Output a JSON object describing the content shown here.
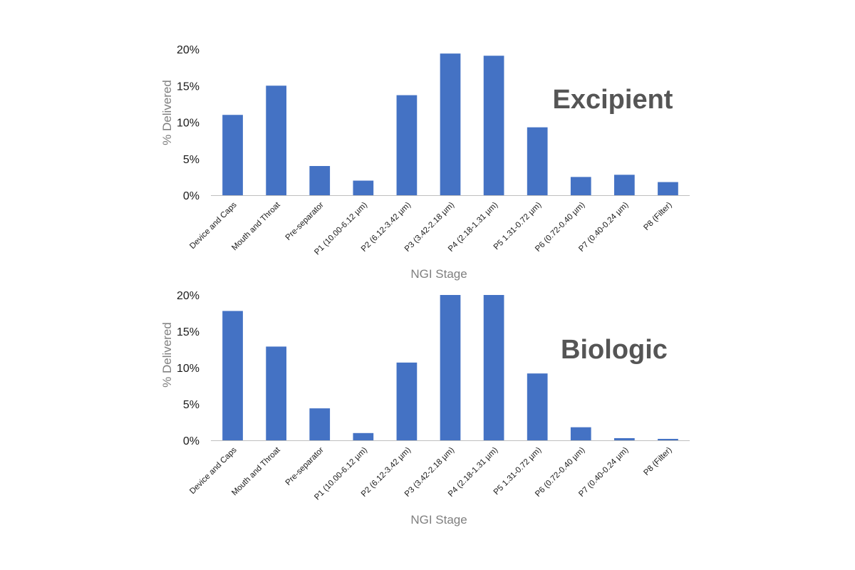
{
  "chart_data": [
    {
      "type": "bar",
      "annotation": "Excipient",
      "title": "",
      "xlabel": "NGI Stage",
      "ylabel": "% Delivered",
      "ylim": [
        0,
        20
      ],
      "yticks": [
        "0%",
        "5%",
        "10%",
        "15%",
        "20%"
      ],
      "grid": false,
      "color": "#4472C4",
      "categories": [
        "Device and Caps",
        "Mouth and Throat",
        "Pre-separator",
        "P1 (10.00-6.12 µm)",
        "P2 (6.12-3.42 µm)",
        "P3 (3.42-2.18 µm)",
        "P4 (2.18-1.31 µm)",
        "P5 1.31-0.72 µm)",
        "P6 (0.72-0.40 µm)",
        "P7 (0.40-0.24 µm)",
        "P8 (Filter)"
      ],
      "values": [
        11.0,
        15.0,
        4.0,
        2.0,
        13.7,
        19.4,
        19.1,
        9.3,
        2.5,
        2.8,
        1.8
      ]
    },
    {
      "type": "bar",
      "annotation": "Biologic",
      "title": "",
      "xlabel": "NGI Stage",
      "ylabel": "% Delivered",
      "ylim": [
        0,
        20
      ],
      "yticks": [
        "0%",
        "5%",
        "10%",
        "15%",
        "20%"
      ],
      "grid": false,
      "color": "#4472C4",
      "categories": [
        "Device and Caps",
        "Mouth and Throat",
        "Pre-separator",
        "P1 (10.00-6.12 µm)",
        "P2 (6.12-3.42 µm)",
        "P3 (3.42-2.18 µm)",
        "P4 (2.18-1.31 µm)",
        "P5 1.31-0.72 µm)",
        "P6 (0.72-0.40 µm)",
        "P7 (0.40-0.24 µm)",
        "P8 (Filter)"
      ],
      "values": [
        17.8,
        12.9,
        4.4,
        1.0,
        10.7,
        20.7,
        20.7,
        9.2,
        1.8,
        0.3,
        0.2
      ]
    }
  ]
}
